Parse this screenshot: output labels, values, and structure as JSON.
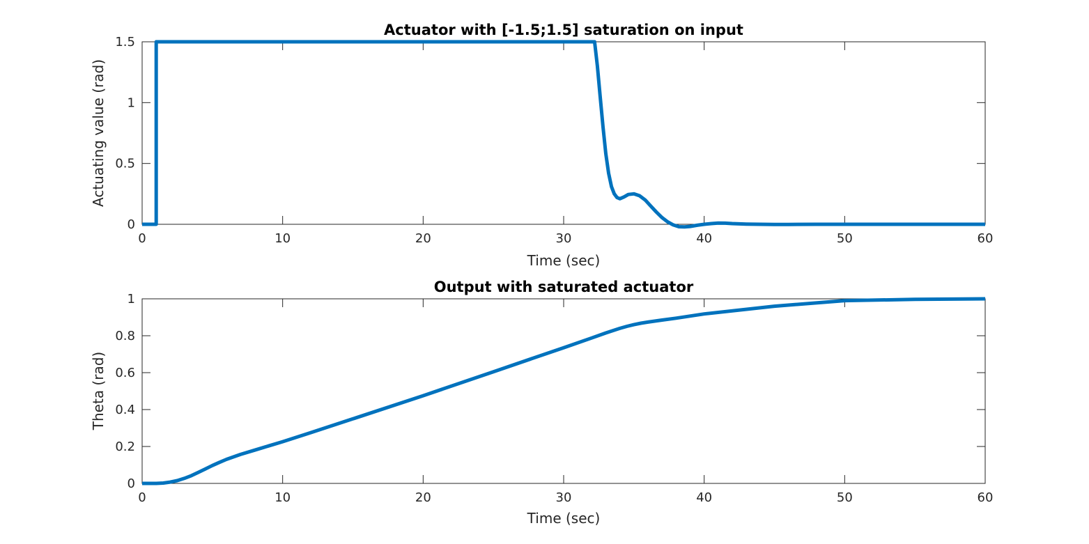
{
  "chart_data": [
    {
      "type": "line",
      "title": "Actuator with [-1.5;1.5] saturation on input",
      "xlabel": "Time (sec)",
      "ylabel": "Actuating value (rad)",
      "xlim": [
        0,
        60
      ],
      "ylim": [
        0,
        1.5
      ],
      "xticks": [
        "0",
        "10",
        "20",
        "30",
        "40",
        "50",
        "60"
      ],
      "yticks": [
        "0",
        "0.5",
        "1",
        "1.5"
      ],
      "grid": false,
      "line_color": "#0072BD",
      "series": [
        {
          "x": [
            0,
            0.95,
            1.0,
            1.0,
            32.2,
            32.4,
            32.6,
            32.8,
            33.0,
            33.2,
            33.4,
            33.6,
            33.8,
            34.0,
            34.3,
            34.6,
            35.0,
            35.4,
            35.8,
            36.2,
            36.6,
            37.0,
            37.4,
            37.8,
            38.2,
            38.6,
            39.0,
            39.5,
            40.0,
            40.5,
            41.0,
            41.5,
            42.0,
            43.0,
            44.0,
            45.0,
            46.0,
            48.0,
            50.0,
            55.0,
            60.0
          ],
          "y": [
            0,
            0,
            0,
            1.5,
            1.5,
            1.3,
            1.05,
            0.8,
            0.58,
            0.42,
            0.31,
            0.25,
            0.22,
            0.21,
            0.225,
            0.245,
            0.25,
            0.235,
            0.2,
            0.15,
            0.1,
            0.055,
            0.02,
            -0.005,
            -0.02,
            -0.022,
            -0.018,
            -0.008,
            0.0,
            0.006,
            0.01,
            0.009,
            0.006,
            0.002,
            0.0,
            -0.002,
            -0.001,
            0.0,
            0.0,
            0.0,
            0.0
          ]
        }
      ]
    },
    {
      "type": "line",
      "title": "Output with saturated actuator",
      "xlabel": "Time (sec)",
      "ylabel": "Theta (rad)",
      "xlim": [
        0,
        60
      ],
      "ylim": [
        0,
        1
      ],
      "xticks": [
        "0",
        "10",
        "20",
        "30",
        "40",
        "50",
        "60"
      ],
      "yticks": [
        "0",
        "0.2",
        "0.4",
        "0.6",
        "0.8",
        "1"
      ],
      "grid": false,
      "line_color": "#0072BD",
      "series": [
        {
          "x": [
            0,
            1,
            1.5,
            2,
            2.5,
            3,
            3.5,
            4,
            4.5,
            5,
            5.5,
            6,
            7,
            8,
            9,
            10,
            12,
            15,
            20,
            25,
            30,
            32,
            33,
            34,
            34.5,
            35,
            35.5,
            36,
            37,
            38,
            40,
            45,
            50,
            55,
            60
          ],
          "y": [
            0,
            0,
            0.002,
            0.007,
            0.015,
            0.027,
            0.042,
            0.06,
            0.078,
            0.097,
            0.114,
            0.13,
            0.157,
            0.18,
            0.203,
            0.226,
            0.275,
            0.35,
            0.475,
            0.605,
            0.735,
            0.788,
            0.815,
            0.84,
            0.851,
            0.86,
            0.868,
            0.874,
            0.885,
            0.895,
            0.918,
            0.96,
            0.99,
            0.997,
            1.0
          ]
        }
      ]
    }
  ]
}
